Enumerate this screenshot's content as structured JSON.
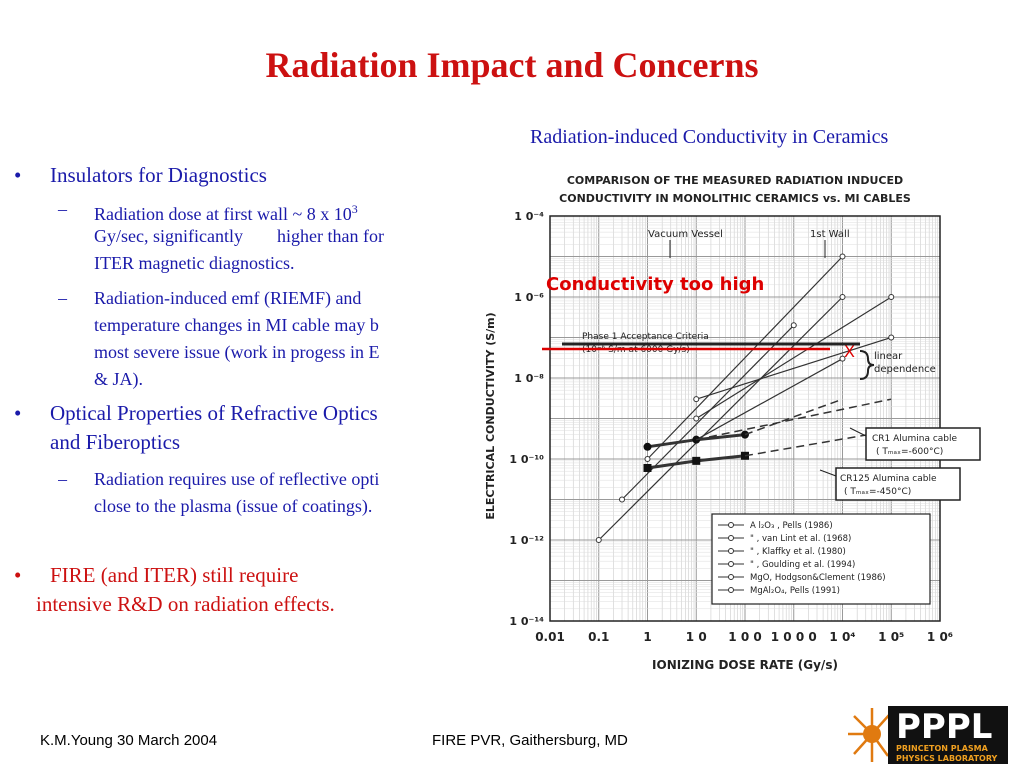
{
  "title": "Radiation Impact and Concerns",
  "figure_caption": "Radiation-induced Conductivity in Ceramics",
  "bullets": [
    {
      "text": "Insulators for Diagnostics"
    },
    {
      "sub1_a": "Radiation dose at first wall ~ 8 x 10",
      "sub1_sup": "3",
      "sub1_b": "Gy/sec, significantly",
      "sub1_c": "higher than for",
      "sub1_d": "ITER magnetic diagnostics."
    },
    {
      "sub2_a": "Radiation-induced emf (RIEMF) and",
      "sub2_b": "temperature changes in MI cable may b",
      "sub2_c": "most severe issue (work in progess in E",
      "sub2_d": "& JA)."
    },
    {
      "text_a": "Optical Properties of Refractive Optics",
      "text_b": "and Fiberoptics"
    },
    {
      "sub3_a": "Radiation requires use of reflective opti",
      "sub3_b": "close to the plasma (issue of coatings)."
    },
    {
      "text_a": "FIRE (and ITER) still require",
      "text_b": "intensive R&D on radiation effects."
    }
  ],
  "chart_data": {
    "type": "line",
    "title_line1": "COMPARISON OF THE MEASURED RADIATION INDUCED",
    "title_line2": "CONDUCTIVITY IN MONOLITHIC CERAMICS vs. MI CABLES",
    "xlabel": "IONIZING DOSE RATE (Gy/s)",
    "ylabel": "ELECTRICAL CONDUCTIVITY (S/m)",
    "x_scale": "log",
    "y_scale": "log",
    "xlim": [
      0.01,
      1000000
    ],
    "ylim": [
      1e-14,
      0.0001
    ],
    "x_ticks": [
      "0.01",
      "0.1",
      "1",
      "1 0",
      "1 0 0",
      "1 0 0 0",
      "1 0⁴",
      "1 0⁵",
      "1 0⁶"
    ],
    "y_ticks": [
      "1 0⁻⁴",
      "1 0⁻⁶",
      "1 0⁻⁸",
      "1 0⁻¹⁰",
      "1 0⁻¹²",
      "1 0⁻¹⁴"
    ],
    "annotations": {
      "vacuum_vessel": "Vacuum Vessel",
      "first_wall": "1st Wall",
      "criteria_line1": "Phase 1 Acceptance Criteria",
      "criteria_line2": "(10⁻⁶ S/m at 6000 Gy/s)",
      "linear1": "linear",
      "linear2": "dependence",
      "cr1_line1": "CR1 Alumina cable",
      "cr1_line2": "( Tₘₐₓ=-600°C)",
      "cr125_line1": "CR125 Alumina cable",
      "cr125_line2": "( Tₘₐₓ=-450°C)",
      "overlay": "Conductivity too high",
      "x_mark": "X"
    },
    "legend": [
      "A l₂O₃ , Pells (1986)",
      "\" , van Lint et al. (1968)",
      "\" , Klaffky et al. (1980)",
      "\" , Goulding et al. (1994)",
      "MgO, Hodgson&Clement (1986)",
      "MgAl₂O₄, Pells (1991)"
    ],
    "series": [
      {
        "name": "A l₂O₃ , Pells (1986)",
        "x": [
          0.1,
          10000
        ],
        "y": [
          1e-12,
          1e-06
        ]
      },
      {
        "name": "\" , van Lint et al. (1968)",
        "x": [
          1,
          10000
        ],
        "y": [
          1e-10,
          1e-05
        ]
      },
      {
        "name": "\" , Klaffky et al. (1980)",
        "x": [
          10,
          100000
        ],
        "y": [
          3e-09,
          1e-07
        ]
      },
      {
        "name": "\" , Goulding et al. (1994)",
        "x": [
          10,
          10000
        ],
        "y": [
          3e-10,
          3e-08
        ]
      },
      {
        "name": "MgO, Hodgson&Clement (1986)",
        "x": [
          0.3,
          1000
        ],
        "y": [
          1e-11,
          2e-07
        ]
      },
      {
        "name": "MgAl₂O₄, Pells (1991)",
        "x": [
          10,
          100000
        ],
        "y": [
          1e-09,
          1e-06
        ]
      },
      {
        "name": "CR1 Alumina cable",
        "x": [
          1,
          10,
          100
        ],
        "y": [
          2e-10,
          3e-10,
          4e-10
        ]
      },
      {
        "name": "CR125 Alumina cable",
        "x": [
          1,
          10,
          100
        ],
        "y": [
          6e-11,
          9e-11,
          1.2e-10
        ]
      }
    ]
  },
  "footer": {
    "left": "K.M.Young 30 March 2004",
    "center": "FIRE PVR, Gaithersburg, MD"
  },
  "logo": {
    "main": "PPPL",
    "line1": "PRINCETON PLASMA",
    "line2": "PHYSICS LABORATORY"
  }
}
